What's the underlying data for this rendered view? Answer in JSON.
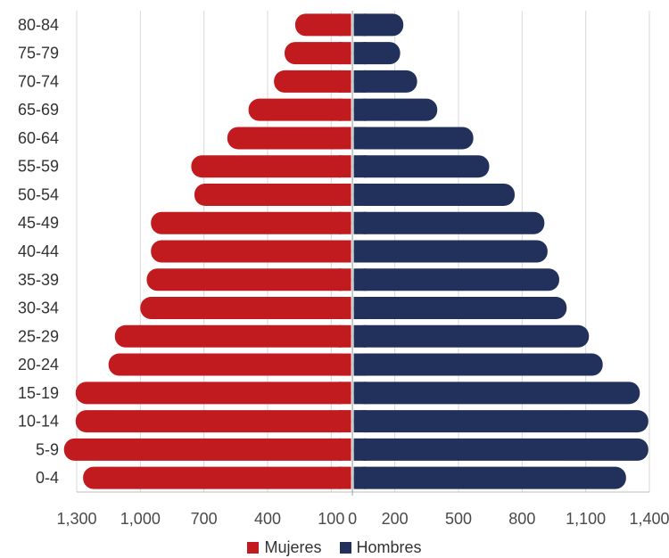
{
  "chart_data": {
    "type": "bar",
    "orientation": "horizontal-butterfly",
    "categories": [
      "0-4",
      "5-9",
      "10-14",
      "15-19",
      "20-24",
      "25-29",
      "30-34",
      "35-39",
      "40-44",
      "45-49",
      "50-54",
      "55-59",
      "60-64",
      "65-69",
      "70-74",
      "75-79",
      "80-84"
    ],
    "series": [
      {
        "name": "Mujeres",
        "color": "#c21b1f",
        "side": "left",
        "values": [
          1270,
          1360,
          1305,
          1305,
          1150,
          1120,
          1000,
          970,
          950,
          950,
          745,
          760,
          590,
          490,
          370,
          320,
          270
        ]
      },
      {
        "name": "Hombres",
        "color": "#22305c",
        "side": "right",
        "values": [
          1290,
          1395,
          1395,
          1355,
          1180,
          1115,
          1010,
          975,
          920,
          905,
          765,
          645,
          570,
          400,
          305,
          225,
          240
        ]
      }
    ],
    "xlim": [
      -1300,
      1400
    ],
    "x_ticks": [
      -1300,
      -1000,
      -700,
      -400,
      -100,
      0,
      200,
      500,
      800,
      1100,
      1400
    ],
    "x_tick_labels": [
      "1,300",
      "1,000",
      "700",
      "400",
      "100",
      "0",
      "200",
      "500",
      "800",
      "1,100",
      "1,400"
    ],
    "grid": true,
    "legend_position": "bottom"
  },
  "legend": {
    "mujeres": "Mujeres",
    "hombres": "Hombres"
  }
}
